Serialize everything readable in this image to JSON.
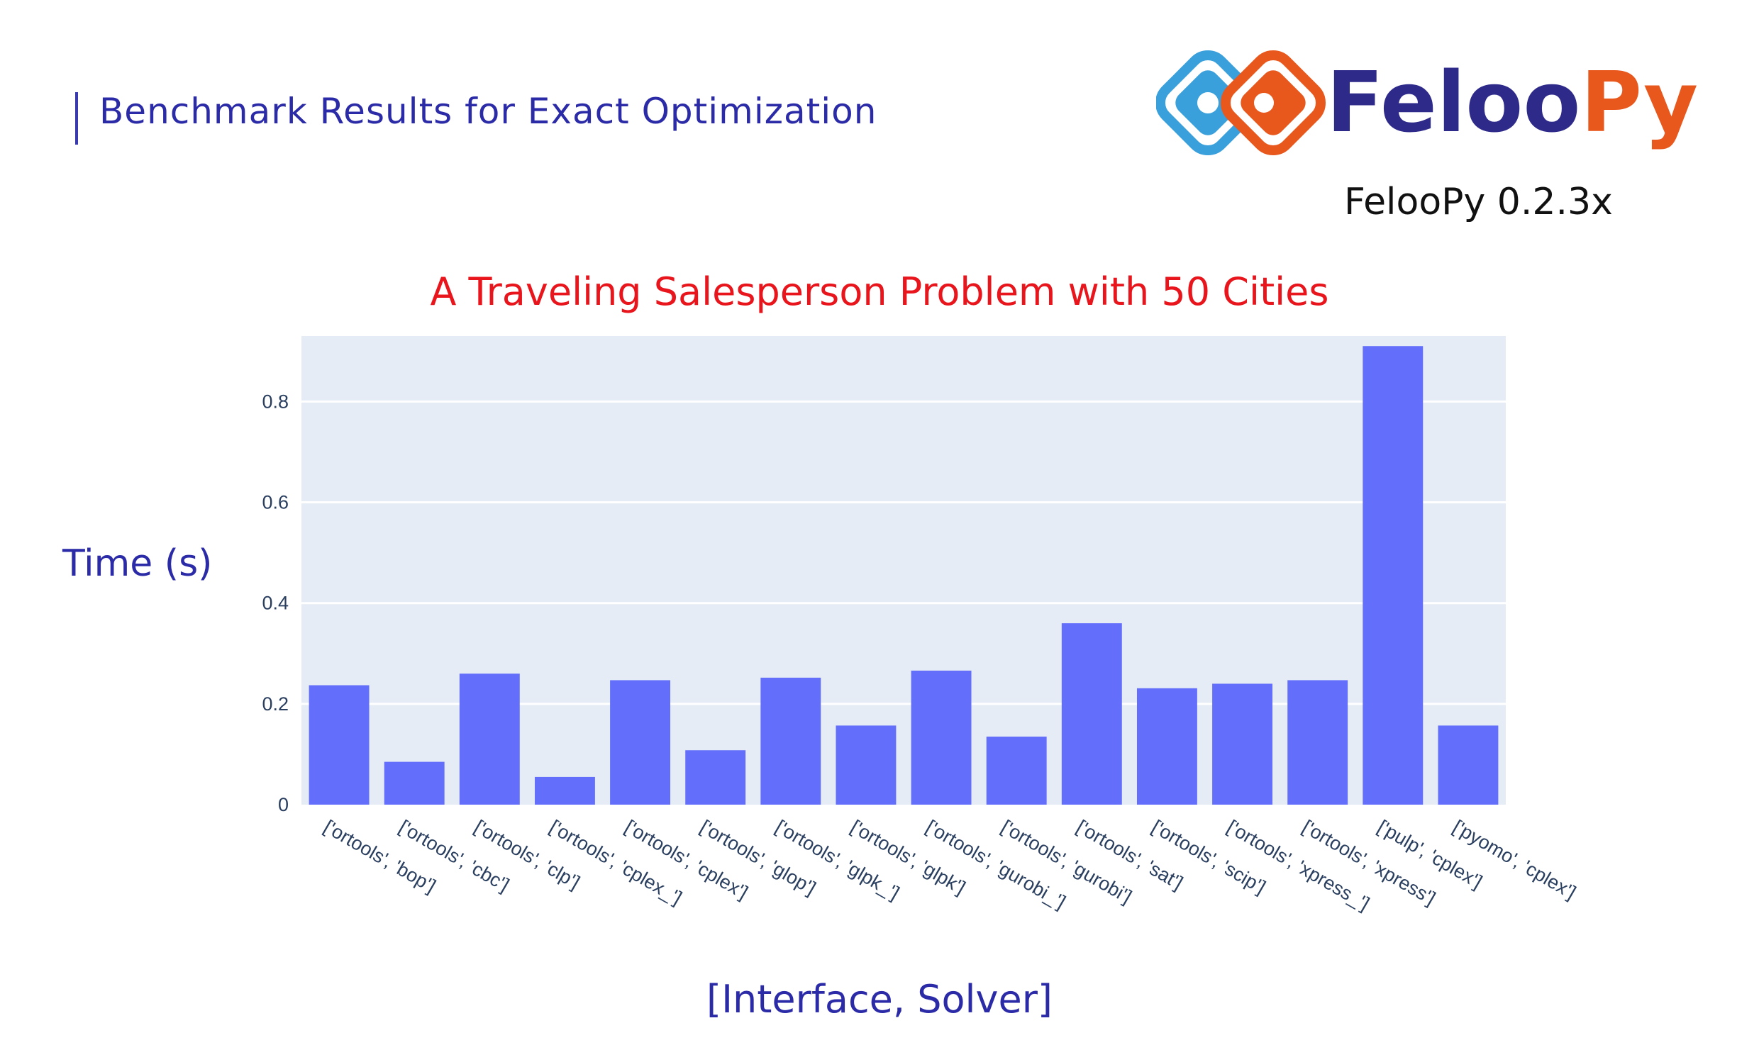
{
  "header": {
    "title": "Benchmark Results for Exact Optimization"
  },
  "brand": {
    "name": "FelooPy",
    "version": "FelooPy 0.2.3x"
  },
  "colors": {
    "bar": "#636efa",
    "plot_bg": "#e5ecf6",
    "title": "#e8161c",
    "label": "#2b2ba8"
  },
  "chart_data": {
    "type": "bar",
    "title": "A Traveling Salesperson Problem with 50 Cities",
    "xlabel": "[Interface, Solver]",
    "ylabel": "Time (s)",
    "ylim": [
      0,
      0.93
    ],
    "yticks": [
      0,
      0.2,
      0.4,
      0.6,
      0.8
    ],
    "ytick_labels": [
      "0",
      "0.2",
      "0.4",
      "0.6",
      "0.8"
    ],
    "grid": true,
    "categories": [
      "['ortools', 'bop']",
      "['ortools', 'cbc']",
      "['ortools', 'clp']",
      "['ortools', 'cplex_']",
      "['ortools', 'cplex']",
      "['ortools', 'glop']",
      "['ortools', 'glpk_']",
      "['ortools', 'glpk']",
      "['ortools', 'gurobi_']",
      "['ortools', 'gurobi']",
      "['ortools', 'sat']",
      "['ortools', 'scip']",
      "['ortools', 'xpress_']",
      "['ortools', 'xpress']",
      "['pulp', 'cplex']",
      "['pyomo', 'cplex']"
    ],
    "values": [
      0.237,
      0.085,
      0.26,
      0.055,
      0.247,
      0.108,
      0.252,
      0.157,
      0.266,
      0.135,
      0.36,
      0.231,
      0.24,
      0.247,
      0.91,
      0.157
    ]
  }
}
